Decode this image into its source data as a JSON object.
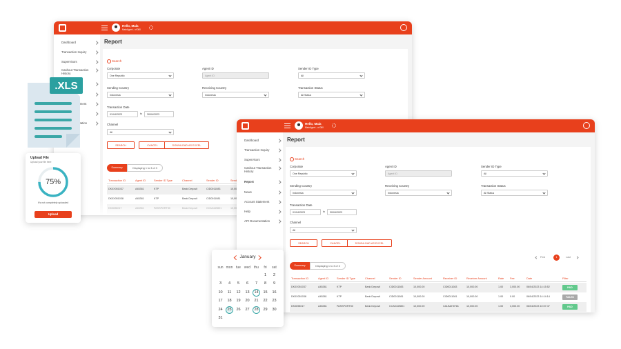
{
  "app": {
    "user_greeting": "Hello, Mala",
    "user_role": "MainAgent - of 080",
    "menu": [
      "Dashboard",
      "Transaction Inquiry",
      "Supervisors",
      "Cashout Transaction History",
      "Report",
      "News",
      "Account Statement",
      "Help",
      "API Documentation"
    ],
    "page_title": "Report",
    "search_title": "Search",
    "fields": [
      {
        "label": "Corporate",
        "value": "One Republic"
      },
      {
        "label": "Agent ID",
        "placeholder": "Agent ID"
      },
      {
        "label": "Sender ID Type",
        "value": "All"
      },
      {
        "label": "Sending Country",
        "value": "Indonesia"
      },
      {
        "label": "Receiving Country",
        "value": "Indonesia"
      },
      {
        "label": "Transaction Status",
        "value": "All Status"
      }
    ],
    "date": {
      "label": "Transaction Date",
      "from": "01/04/2023",
      "separator": "to",
      "to": "30/04/2023"
    },
    "channel": {
      "label": "Channel",
      "value": "All"
    },
    "buttons": [
      "SEARCH",
      "CANCEL",
      "DOWNLOAD AS EXCEL"
    ],
    "tabs": [
      "Summary",
      "Displaying 1 to 3 of 3"
    ],
    "pagination": [
      "First",
      "1",
      "Last"
    ],
    "table": {
      "columns": [
        "Transaction ID",
        "Agent ID",
        "Sender ID Type",
        "Channel",
        "Sender ID",
        "Sender Amount",
        "Receiver ID",
        "Receiver Amount",
        "Rate",
        "Fee",
        "Date",
        "Filter"
      ],
      "rows": [
        {
          "cells": [
            "DK0X051037",
            "A45381",
            "KTP",
            "Bank Deposit",
            "CID0011083",
            "10,000.00",
            "CID0011083",
            "10,000.00",
            "1.00",
            "3,000.00",
            "06/04/2023 14:15:52",
            "PAID"
          ],
          "status_color": "#62c98c"
        },
        {
          "cells": [
            "DK0X051038",
            "A45381",
            "KTP",
            "Bank Deposit",
            "CID0011081",
            "10,000.00",
            "CID0011081",
            "10,000.00",
            "1.00",
            "0.00",
            "06/04/2023 14:14:14",
            "FAILED"
          ],
          "status_color": "#a9a9a9"
        },
        {
          "cells": [
            "DK0698017",
            "A45381",
            "PASSPORT50",
            "Bank Deposit",
            "CCA0449801",
            "10,000.00",
            "CALBAH0781",
            "10,000.00",
            "1.00",
            "3,000.00",
            "06/04/2023 10:07:47",
            "PAID"
          ],
          "status_color": "#62c98c"
        }
      ]
    }
  },
  "xls_label": ".XLS",
  "upload": {
    "title": "Upload File",
    "subtitle": "Upload your file here",
    "progress": 75,
    "progress_label": "75%",
    "status": "It's not completely uploaded",
    "button": "Upload"
  },
  "calendar": {
    "month": "January",
    "weekdays": [
      "sun",
      "mon",
      "tue",
      "wed",
      "thu",
      "fri",
      "sat"
    ],
    "weeks": [
      [
        null,
        null,
        null,
        null,
        null,
        1,
        2
      ],
      [
        3,
        4,
        5,
        6,
        7,
        8,
        9
      ],
      [
        10,
        11,
        12,
        13,
        14,
        15,
        16
      ],
      [
        17,
        18,
        19,
        20,
        21,
        22,
        23
      ],
      [
        24,
        25,
        26,
        27,
        28,
        29,
        30
      ],
      [
        31
      ]
    ],
    "highlighted": [
      14,
      25,
      28
    ]
  }
}
